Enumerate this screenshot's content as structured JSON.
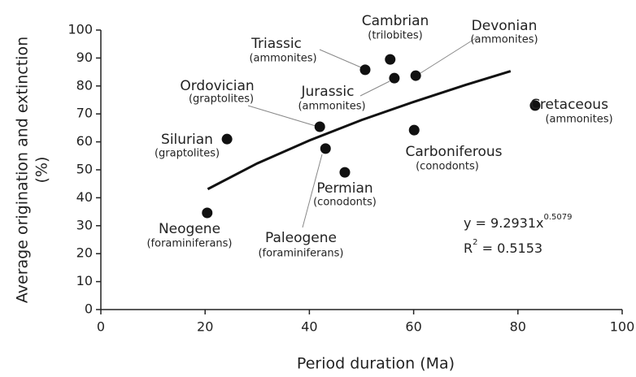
{
  "chart_data": {
    "type": "scatter",
    "xlabel": "Period duration (Ma)",
    "ylabel": [
      "Average origination and extinction",
      "(%)"
    ],
    "labels": [
      "Neogene",
      "Silurian",
      "Ordovician",
      "Paleogene",
      "Permian",
      "Triassic",
      "Cambrian",
      "Jurassic",
      "Devonian",
      "Carboniferous",
      "Cretaceous"
    ],
    "sublabels": [
      "(foraminiferans)",
      "(graptolites)",
      "(graptolites)",
      "(foraminiferans)",
      "(conodonts)",
      "(ammonites)",
      "(trilobites)",
      "(ammonites)",
      "(ammonites)",
      "(conodonts)",
      "(ammonites)"
    ],
    "x": [
      20.4,
      24.2,
      42.0,
      43.1,
      46.8,
      50.7,
      55.5,
      56.3,
      60.4,
      60.1,
      83.3
    ],
    "values": [
      34.6,
      61.0,
      65.4,
      57.6,
      49.1,
      85.8,
      89.5,
      82.8,
      83.7,
      64.2,
      73.0
    ],
    "color": "#111111",
    "trendline": {
      "x": [
        20.5,
        30,
        40,
        50,
        60,
        70,
        78.6
      ],
      "values": [
        43.1,
        52.3,
        60.5,
        67.8,
        74.3,
        80.4,
        85.3
      ],
      "color": "#111111"
    },
    "equation": "y = 9.2931x",
    "equation_exponent": "0.5079",
    "r2_label": "R",
    "r2_exponent": "2",
    "r2_value": " = 0.5153",
    "xlim": [
      0,
      100
    ],
    "ylim": [
      0,
      100
    ],
    "xticks": [
      0,
      20,
      40,
      60,
      80,
      100
    ],
    "yticks": [
      0,
      10,
      20,
      30,
      40,
      50,
      60,
      70,
      80,
      90,
      100
    ]
  }
}
